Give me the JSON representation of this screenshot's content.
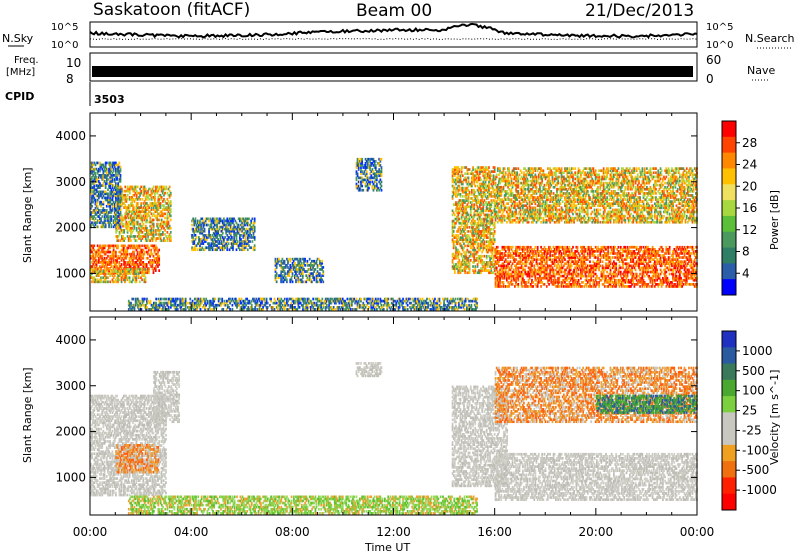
{
  "header": {
    "station": "Saskatoon (fitACF)",
    "beam": "Beam 00",
    "date": "21/Dec/2013",
    "cpid_label": "CPID",
    "cpid_value": "3503"
  },
  "strips": {
    "nsky_label": "N.Sky",
    "nsky_ticks": [
      "10^5",
      "10^0"
    ],
    "nsearch_label": "N.Search",
    "freq_label_1": "Freq.",
    "freq_label_2": "[MHz]",
    "freq_ticks": [
      "10",
      "8"
    ],
    "nave_label": "Nave",
    "nave_ticks": [
      "60",
      "0"
    ],
    "right_nsky_ticks": [
      "10^5",
      "10^0"
    ]
  },
  "power_scale": {
    "label": "Power [dB]",
    "ticks": [
      "28",
      "24",
      "20",
      "16",
      "12",
      "8",
      "4"
    ],
    "colors": [
      "#ff0000",
      "#ff4400",
      "#ff8800",
      "#ffc000",
      "#f0e060",
      "#a8d840",
      "#5bbf3a",
      "#4a9a5e",
      "#2f7f66",
      "#2a5ea8",
      "#0000ff"
    ]
  },
  "velocity_scale": {
    "label": "Velocity [m s^-1]",
    "ticks": [
      "1000",
      "500",
      "100",
      "25",
      "-25",
      "-100",
      "-500",
      "-1000"
    ],
    "colors": [
      "#2030c0",
      "#2a5aa0",
      "#3a7a5a",
      "#4aa830",
      "#7cd040",
      "#c8c8c0",
      "#c8c8c0",
      "#f0a020",
      "#f07010",
      "#ff2000",
      "#ff0000"
    ]
  },
  "chart_data": [
    {
      "type": "heatmap",
      "panel": "power",
      "ylabel": "Slant Range [km]",
      "ylim": [
        180,
        4500
      ],
      "y_ticks": [
        "1000",
        "2000",
        "3000",
        "4000"
      ],
      "x_ticks": [
        "00:00",
        "04:00",
        "08:00",
        "12:00",
        "16:00",
        "20:00",
        "00:00"
      ],
      "xlim": [
        "00:00",
        "24:00"
      ],
      "regions": [
        {
          "t0": 0.0,
          "t1": 2.7,
          "r0": 1000,
          "r1": 1600,
          "level": "high"
        },
        {
          "t0": 0.0,
          "t1": 2.2,
          "r0": 800,
          "r1": 1100,
          "level": "mid"
        },
        {
          "t0": 1.0,
          "t1": 3.2,
          "r0": 1700,
          "r1": 2900,
          "level": "mid"
        },
        {
          "t0": 0.0,
          "t1": 1.2,
          "r0": 2000,
          "r1": 3400,
          "level": "low"
        },
        {
          "t0": 4.0,
          "t1": 6.5,
          "r0": 1500,
          "r1": 2200,
          "level": "low"
        },
        {
          "t0": 7.3,
          "t1": 9.2,
          "r0": 800,
          "r1": 1300,
          "level": "low"
        },
        {
          "t0": 10.5,
          "t1": 11.5,
          "r0": 2800,
          "r1": 3500,
          "level": "low"
        },
        {
          "t0": 14.3,
          "t1": 16.0,
          "r0": 1000,
          "r1": 3300,
          "level": "mid"
        },
        {
          "t0": 16.0,
          "t1": 24.0,
          "r0": 700,
          "r1": 1600,
          "level": "high"
        },
        {
          "t0": 16.0,
          "t1": 24.0,
          "r0": 2100,
          "r1": 3300,
          "level": "mid"
        },
        {
          "t0": 1.5,
          "t1": 15.3,
          "r0": 200,
          "r1": 450,
          "level": "low"
        }
      ]
    },
    {
      "type": "heatmap",
      "panel": "velocity",
      "ylabel": "Slant Range [km]",
      "ylim": [
        180,
        4500
      ],
      "y_ticks": [
        "1000",
        "2000",
        "3000",
        "4000"
      ],
      "x_ticks": [
        "00:00",
        "04:00",
        "08:00",
        "12:00",
        "16:00",
        "20:00",
        "00:00"
      ],
      "xlim": [
        "00:00",
        "24:00"
      ],
      "xlabel": "Time UT",
      "regions": [
        {
          "t0": 0.0,
          "t1": 3.0,
          "r0": 600,
          "r1": 2800,
          "level": "ground"
        },
        {
          "t0": 1.0,
          "t1": 2.7,
          "r0": 1100,
          "r1": 1700,
          "level": "negative"
        },
        {
          "t0": 2.5,
          "t1": 3.5,
          "r0": 2200,
          "r1": 3300,
          "level": "ground"
        },
        {
          "t0": 10.5,
          "t1": 11.5,
          "r0": 3200,
          "r1": 3500,
          "level": "ground"
        },
        {
          "t0": 14.3,
          "t1": 16.5,
          "r0": 800,
          "r1": 3000,
          "level": "ground"
        },
        {
          "t0": 16.0,
          "t1": 24.0,
          "r0": 500,
          "r1": 1500,
          "level": "ground"
        },
        {
          "t0": 16.0,
          "t1": 24.0,
          "r0": 2200,
          "r1": 3400,
          "level": "negative"
        },
        {
          "t0": 20.0,
          "t1": 24.0,
          "r0": 2400,
          "r1": 2800,
          "level": "positive"
        },
        {
          "t0": 1.5,
          "t1": 15.3,
          "r0": 200,
          "r1": 600,
          "level": "slow"
        }
      ]
    }
  ]
}
